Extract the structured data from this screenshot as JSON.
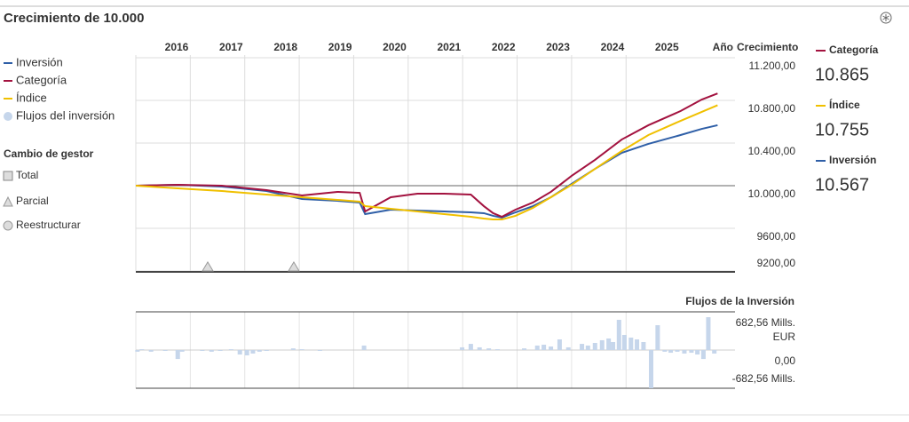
{
  "chart_data": [
    {
      "type": "line",
      "title": "Crecimiento de 10.000",
      "xlabel": "Año",
      "ylabel": "Crecimiento",
      "x": [
        2016.0,
        2016.77,
        2017.58,
        2018.4,
        2019.05,
        2019.7,
        2020.11,
        2020.21,
        2020.68,
        2021.17,
        2021.66,
        2022.15,
        2022.39,
        2022.56,
        2022.72,
        2022.97,
        2023.29,
        2023.62,
        2024.0,
        2024.43,
        2024.92,
        2025.41,
        2026.0,
        2026.39,
        2026.68
      ],
      "series": [
        {
          "name": "Inversión",
          "color": "#2f5fa7",
          "values": [
            10000,
            10008,
            9992,
            9950,
            9875,
            9858,
            9842,
            9733,
            9775,
            9767,
            9758,
            9750,
            9742,
            9717,
            9700,
            9750,
            9808,
            9892,
            10017,
            10158,
            10308,
            10392,
            10475,
            10533,
            10567
          ],
          "value_labels": [
            null,
            null,
            null,
            null,
            null,
            null,
            null,
            null,
            null,
            null,
            null,
            null,
            null,
            null,
            null,
            null,
            null,
            null,
            null,
            null,
            null,
            null,
            null,
            null,
            "10.567"
          ]
        },
        {
          "name": "Categoría",
          "color": "#a3123f",
          "values": [
            10000,
            10008,
            10000,
            9958,
            9908,
            9942,
            9933,
            9758,
            9892,
            9925,
            9925,
            9917,
            9808,
            9742,
            9708,
            9775,
            9842,
            9942,
            10092,
            10242,
            10433,
            10567,
            10700,
            10808,
            10865
          ],
          "value_labels": [
            null,
            null,
            null,
            null,
            null,
            null,
            null,
            null,
            null,
            null,
            null,
            null,
            null,
            null,
            null,
            null,
            null,
            null,
            null,
            null,
            null,
            null,
            null,
            null,
            "10.865"
          ]
        },
        {
          "name": "Índice",
          "color": "#f0c000",
          "values": [
            10000,
            9975,
            9950,
            9917,
            9892,
            9867,
            9850,
            9808,
            9783,
            9758,
            9733,
            9708,
            9692,
            9683,
            9683,
            9717,
            9792,
            9892,
            10008,
            10158,
            10325,
            10475,
            10608,
            10692,
            10755
          ],
          "value_labels": [
            null,
            null,
            null,
            null,
            null,
            null,
            null,
            null,
            null,
            null,
            null,
            null,
            null,
            null,
            null,
            null,
            null,
            null,
            null,
            null,
            null,
            null,
            null,
            null,
            "10.755"
          ]
        }
      ],
      "xlim": [
        2016,
        2027
      ],
      "xticks": [
        2016,
        2017,
        2018,
        2019,
        2020,
        2021,
        2022,
        2023,
        2024,
        2025
      ],
      "ylim": [
        9200,
        11225
      ],
      "yticks": [
        {
          "value": 9200,
          "label": "9200,00"
        },
        {
          "value": 9600,
          "label": "9600,00"
        },
        {
          "value": 10000,
          "label": "10.000,00"
        },
        {
          "value": 10400,
          "label": "10.400,00"
        },
        {
          "value": 10800,
          "label": "10.800,00"
        },
        {
          "value": 11200,
          "label": "11.200,00"
        }
      ],
      "grid": true,
      "partial_change_x": [
        2017.32,
        2018.9
      ]
    },
    {
      "type": "bar",
      "title": "Flujos de la Inversión",
      "x": [
        2016.03,
        2016.11,
        2016.28,
        2016.54,
        2016.77,
        2016.85,
        2017.22,
        2017.39,
        2017.55,
        2017.75,
        2017.91,
        2018.04,
        2018.15,
        2018.27,
        2018.4,
        2018.89,
        2019.05,
        2019.38,
        2020.19,
        2021.99,
        2022.15,
        2022.31,
        2022.48,
        2022.64,
        2023.13,
        2023.37,
        2023.49,
        2023.62,
        2023.78,
        2023.94,
        2024.19,
        2024.3,
        2024.43,
        2024.56,
        2024.68,
        2024.76,
        2024.87,
        2024.97,
        2025.09,
        2025.2,
        2025.32,
        2025.46,
        2025.58,
        2025.71,
        2025.82,
        2025.94,
        2026.07,
        2026.2,
        2026.31,
        2026.42,
        2026.51,
        2026.62
      ],
      "series": [
        {
          "name": "Flujos del inversión",
          "color": "#c6d6eb",
          "values": [
            -30,
            15,
            -30,
            -15,
            -160,
            -30,
            -15,
            -30,
            -15,
            15,
            -80,
            -95,
            -63,
            -30,
            -15,
            30,
            15,
            -15,
            80,
            48,
            110,
            48,
            30,
            15,
            30,
            80,
            95,
            63,
            190,
            48,
            110,
            80,
            127,
            175,
            206,
            143,
            540,
            270,
            222,
            190,
            143,
            -682,
            444,
            -30,
            -48,
            -30,
            -63,
            -48,
            -80,
            -160,
            587,
            -63
          ]
        }
      ],
      "xlim": [
        2016,
        2027
      ],
      "ylim": [
        -682.56,
        682.56
      ],
      "yticks": [
        {
          "value": 682.56,
          "label": "682,56 Mills. EUR"
        },
        {
          "value": 0,
          "label": "0,00"
        },
        {
          "value": -682.56,
          "label": "-682,56 Mills."
        }
      ]
    }
  ],
  "manager_change_legend": {
    "title": "Cambio de gestor",
    "items": [
      "Total",
      "Parcial",
      "Reestructurar"
    ]
  }
}
